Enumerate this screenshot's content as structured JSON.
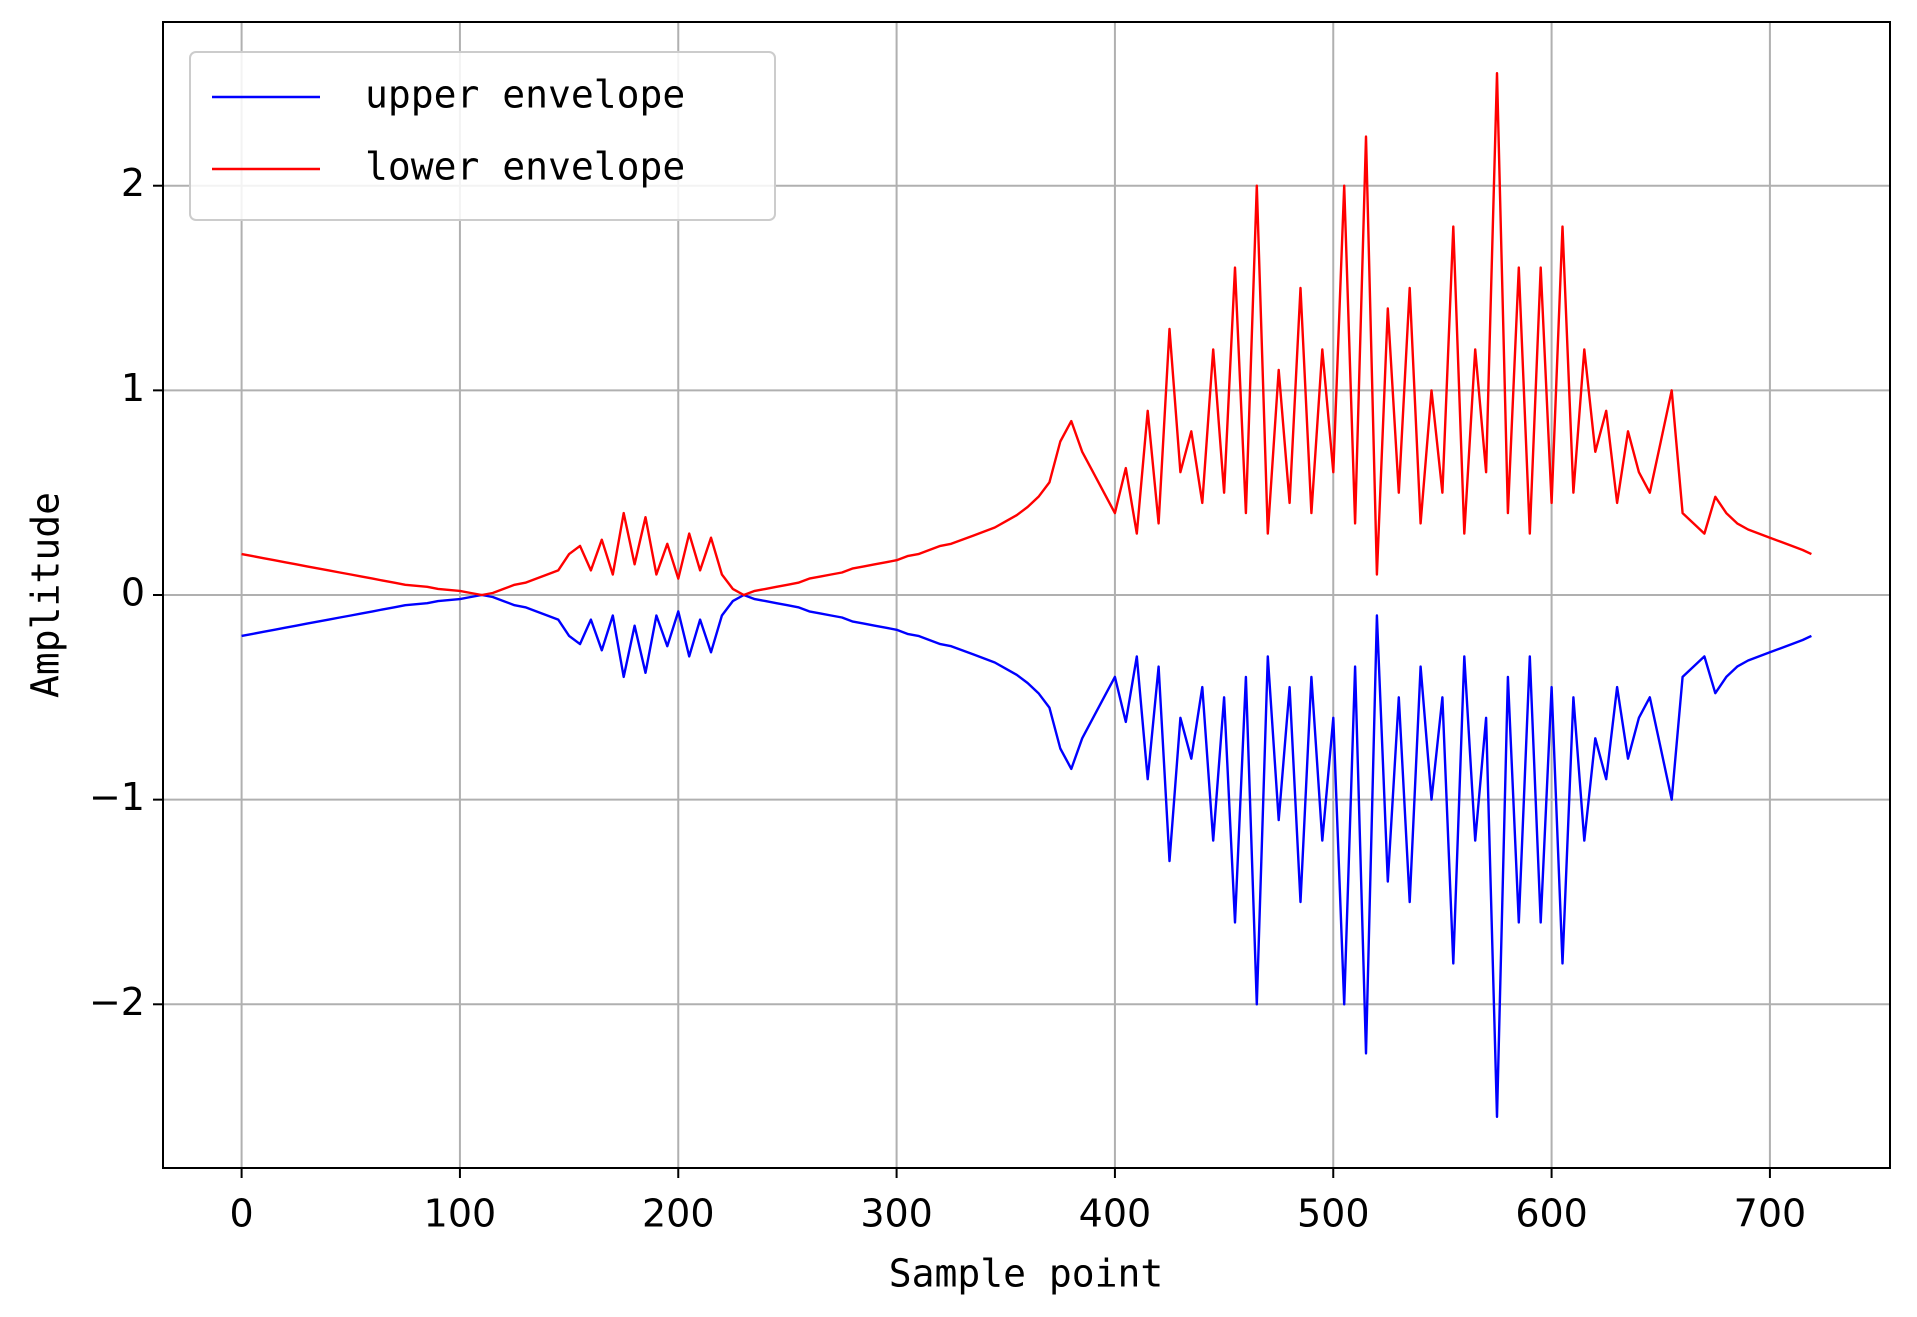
{
  "chart_data": {
    "type": "line",
    "xlabel": "Sample point",
    "ylabel": "Amplitude",
    "x": [
      0,
      5,
      10,
      15,
      20,
      25,
      30,
      35,
      40,
      45,
      50,
      55,
      60,
      65,
      70,
      75,
      80,
      85,
      90,
      95,
      100,
      105,
      110,
      115,
      120,
      125,
      130,
      135,
      140,
      145,
      150,
      155,
      160,
      165,
      170,
      175,
      180,
      185,
      190,
      195,
      200,
      205,
      210,
      215,
      220,
      225,
      230,
      235,
      240,
      245,
      250,
      255,
      260,
      265,
      270,
      275,
      280,
      285,
      290,
      295,
      300,
      305,
      310,
      315,
      320,
      325,
      330,
      335,
      340,
      345,
      350,
      355,
      360,
      365,
      370,
      375,
      380,
      385,
      390,
      395,
      400,
      405,
      410,
      415,
      420,
      425,
      430,
      435,
      440,
      445,
      450,
      455,
      460,
      465,
      470,
      475,
      480,
      485,
      490,
      495,
      500,
      505,
      510,
      515,
      520,
      525,
      530,
      535,
      540,
      545,
      550,
      555,
      560,
      565,
      570,
      575,
      580,
      585,
      590,
      595,
      600,
      605,
      610,
      615,
      620,
      625,
      630,
      635,
      640,
      645,
      650,
      655,
      660,
      665,
      670,
      675,
      680,
      685,
      690,
      695,
      700,
      705,
      710,
      715,
      719
    ],
    "series": [
      {
        "name": "upper envelope",
        "color": "#0000ff",
        "values": [
          -0.2,
          -0.19,
          -0.18,
          -0.17,
          -0.16,
          -0.15,
          -0.14,
          -0.13,
          -0.12,
          -0.11,
          -0.1,
          -0.09,
          -0.08,
          -0.07,
          -0.06,
          -0.05,
          -0.045,
          -0.04,
          -0.03,
          -0.025,
          -0.02,
          -0.01,
          0,
          -0.01,
          -0.03,
          -0.05,
          -0.06,
          -0.08,
          -0.1,
          -0.12,
          -0.2,
          -0.24,
          -0.12,
          -0.27,
          -0.1,
          -0.4,
          -0.15,
          -0.38,
          -0.1,
          -0.25,
          -0.08,
          -0.3,
          -0.12,
          -0.28,
          -0.1,
          -0.03,
          0,
          -0.02,
          -0.03,
          -0.04,
          -0.05,
          -0.06,
          -0.08,
          -0.09,
          -0.1,
          -0.11,
          -0.13,
          -0.14,
          -0.15,
          -0.16,
          -0.17,
          -0.19,
          -0.2,
          -0.22,
          -0.24,
          -0.25,
          -0.27,
          -0.29,
          -0.31,
          -0.33,
          -0.36,
          -0.39,
          -0.43,
          -0.48,
          -0.55,
          -0.75,
          -0.85,
          -0.7,
          -0.6,
          -0.5,
          -0.4,
          -0.62,
          -0.3,
          -0.9,
          -0.35,
          -1.3,
          -0.6,
          -0.8,
          -0.45,
          -1.2,
          -0.5,
          -1.6,
          -0.4,
          -2.0,
          -0.3,
          -1.1,
          -0.45,
          -1.5,
          -0.4,
          -1.2,
          -0.6,
          -2.0,
          -0.35,
          -2.24,
          -0.1,
          -1.4,
          -0.5,
          -1.5,
          -0.35,
          -1.0,
          -0.5,
          -1.8,
          -0.3,
          -1.2,
          -0.6,
          -2.55,
          -0.4,
          -1.6,
          -0.3,
          -1.6,
          -0.45,
          -1.8,
          -0.5,
          -1.2,
          -0.7,
          -0.9,
          -0.45,
          -0.8,
          -0.6,
          -0.5,
          -0.75,
          -1.0,
          -0.4,
          -0.35,
          -0.3,
          -0.48,
          -0.4,
          -0.35,
          -0.32,
          -0.3,
          -0.28,
          -0.26,
          -0.24,
          -0.22,
          -0.2
        ]
      },
      {
        "name": "lower envelope",
        "color": "#ff0000",
        "values": [
          0.2,
          0.19,
          0.18,
          0.17,
          0.16,
          0.15,
          0.14,
          0.13,
          0.12,
          0.11,
          0.1,
          0.09,
          0.08,
          0.07,
          0.06,
          0.05,
          0.045,
          0.04,
          0.03,
          0.025,
          0.02,
          0.01,
          0,
          0.01,
          0.03,
          0.05,
          0.06,
          0.08,
          0.1,
          0.12,
          0.2,
          0.24,
          0.12,
          0.27,
          0.1,
          0.4,
          0.15,
          0.38,
          0.1,
          0.25,
          0.08,
          0.3,
          0.12,
          0.28,
          0.1,
          0.03,
          0,
          0.02,
          0.03,
          0.04,
          0.05,
          0.06,
          0.08,
          0.09,
          0.1,
          0.11,
          0.13,
          0.14,
          0.15,
          0.16,
          0.17,
          0.19,
          0.2,
          0.22,
          0.24,
          0.25,
          0.27,
          0.29,
          0.31,
          0.33,
          0.36,
          0.39,
          0.43,
          0.48,
          0.55,
          0.75,
          0.85,
          0.7,
          0.6,
          0.5,
          0.4,
          0.62,
          0.3,
          0.9,
          0.35,
          1.3,
          0.6,
          0.8,
          0.45,
          1.2,
          0.5,
          1.6,
          0.4,
          2.0,
          0.3,
          1.1,
          0.45,
          1.5,
          0.4,
          1.2,
          0.6,
          2.0,
          0.35,
          2.24,
          0.1,
          1.4,
          0.5,
          1.5,
          0.35,
          1.0,
          0.5,
          1.8,
          0.3,
          1.2,
          0.6,
          2.55,
          0.4,
          1.6,
          0.3,
          1.6,
          0.45,
          1.8,
          0.5,
          1.2,
          0.7,
          0.9,
          0.45,
          0.8,
          0.6,
          0.5,
          0.75,
          1.0,
          0.4,
          0.35,
          0.3,
          0.48,
          0.4,
          0.35,
          0.32,
          0.3,
          0.28,
          0.26,
          0.24,
          0.22,
          0.2
        ]
      }
    ],
    "xlim": [
      -36,
      755
    ],
    "ylim": [
      -2.8,
      2.8
    ],
    "xticks": [
      0,
      100,
      200,
      300,
      400,
      500,
      600,
      700
    ],
    "yticks": [
      {
        "value": -2,
        "label": "−2"
      },
      {
        "value": -1,
        "label": "−1"
      },
      0,
      1,
      2
    ],
    "grid": true,
    "legend": "upper left"
  }
}
